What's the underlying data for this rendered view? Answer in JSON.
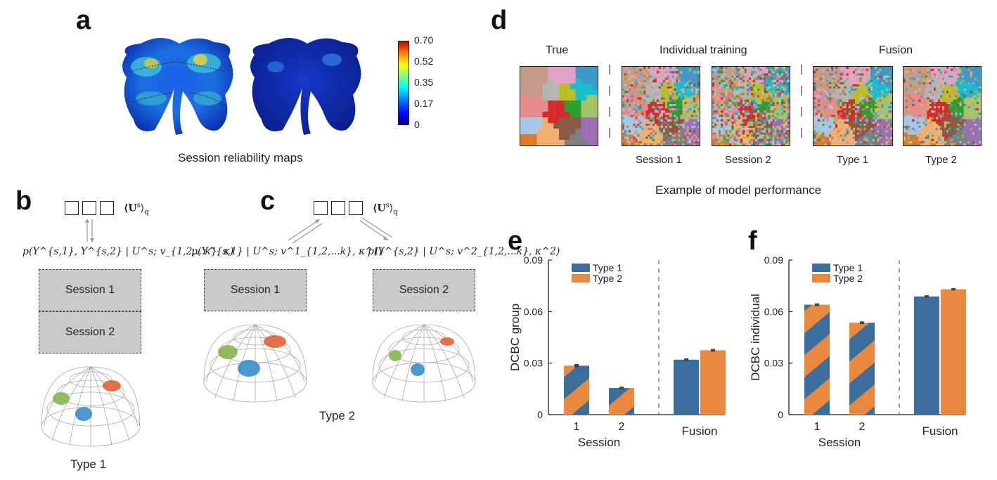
{
  "panel_letters": {
    "a": "a",
    "b": "b",
    "c": "c",
    "d": "d",
    "e": "e",
    "f": "f"
  },
  "panel_a": {
    "caption": "Session reliability maps",
    "colorbar_ticks": [
      "0.70",
      "0.52",
      "0.35",
      "0.17",
      "0"
    ]
  },
  "panel_b": {
    "expectation": "⟨U",
    "expectation_sup": "s",
    "expectation_sub": "q",
    "likelihood": "p(Y^{s,1}, Y^{s,2} | U^s; v_{1,2,...k}, κ)",
    "session1": "Session 1",
    "session2": "Session 2",
    "type_label": "Type 1"
  },
  "panel_c": {
    "likelihood_1": "p(Y^{s,1} | U^s; v^1_{1,2,...k}, κ^1)",
    "likelihood_2": "p(Y^{s,2} | U^s; v^2_{1,2,...k}, κ^2)",
    "session1": "Session 1",
    "session2": "Session 2",
    "type_label": "Type 2"
  },
  "panel_d": {
    "true_title": "True",
    "indiv_title": "Individual training",
    "fusion_title": "Fusion",
    "labels": [
      "Session 1",
      "Session 2",
      "Type 1",
      "Type 2"
    ],
    "caption": "Example of model performance"
  },
  "colors": {
    "type1": "#3b6e9c",
    "type2": "#e8893f",
    "cluster_green": "#7cb342",
    "cluster_orange": "#e0592a",
    "cluster_blue": "#2e86c8"
  },
  "chart_data": [
    {
      "type": "bar",
      "panel": "e",
      "ylabel": "DCBC group",
      "xlabel": "Session",
      "ylim": [
        0,
        0.09
      ],
      "yticks": [
        "0",
        "0.03",
        "0.06",
        "0.09"
      ],
      "categories": [
        "1",
        "2",
        "Fusion"
      ],
      "legend": [
        "Type 1",
        "Type 2"
      ],
      "legend_position": "top-left",
      "session_bars": [
        {
          "category": "1",
          "value": 0.0285,
          "error": 0.001
        },
        {
          "category": "2",
          "value": 0.0155,
          "error": 0.0008
        }
      ],
      "fusion_bars": [
        {
          "series": "Type 1",
          "value": 0.032,
          "error": 0.0008
        },
        {
          "series": "Type 2",
          "value": 0.0375,
          "error": 0.0008
        }
      ]
    },
    {
      "type": "bar",
      "panel": "f",
      "ylabel": "DCBC individual",
      "xlabel": "Session",
      "ylim": [
        0,
        0.09
      ],
      "yticks": [
        "0",
        "0.03",
        "0.06",
        "0.09"
      ],
      "categories": [
        "1",
        "2",
        "Fusion"
      ],
      "legend": [
        "Type 1",
        "Type 2"
      ],
      "legend_position": "top-left",
      "session_bars": [
        {
          "category": "1",
          "value": 0.064,
          "error": 0.0008
        },
        {
          "category": "2",
          "value": 0.0535,
          "error": 0.0008
        }
      ],
      "fusion_bars": [
        {
          "series": "Type 1",
          "value": 0.0688,
          "error": 0.0007
        },
        {
          "series": "Type 2",
          "value": 0.073,
          "error": 0.0007
        }
      ]
    }
  ]
}
